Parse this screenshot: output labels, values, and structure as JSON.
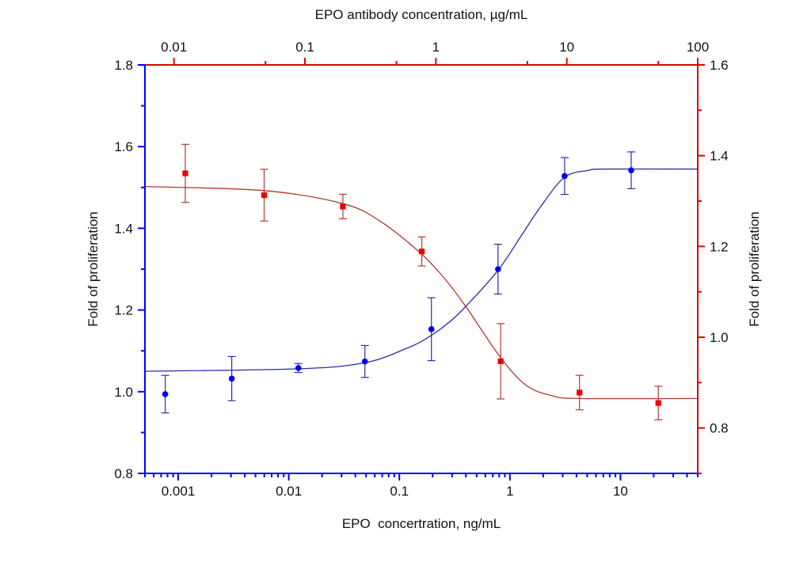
{
  "chart_data": {
    "type": "scatter",
    "grid": false,
    "legend": "none",
    "axes": {
      "bottom": {
        "label": "EPO  concertration, ng/mL",
        "scale": "log",
        "range": [
          0.0005,
          50
        ],
        "ticks": [
          "0.001",
          "0.01",
          "0.1",
          "1",
          "10"
        ],
        "color": "#0000ff"
      },
      "top": {
        "label": "EPO antibody concentration, µg/mL",
        "scale": "log",
        "range": [
          0.006,
          100
        ],
        "ticks": [
          "0.01",
          "0.1",
          "1",
          "10",
          "100"
        ],
        "color": "#e00000"
      },
      "left": {
        "label": "Fold of proliferation",
        "scale": "linear",
        "range": [
          0.8,
          1.8
        ],
        "ticks": [
          "0.8",
          "1.0",
          "1.2",
          "1.4",
          "1.6",
          "1.8"
        ],
        "color": "#0000ff"
      },
      "right": {
        "label": "Fold of proliferation",
        "scale": "linear",
        "range": [
          0.7,
          1.6
        ],
        "ticks": [
          "0.8",
          "1.0",
          "1.2",
          "1.4",
          "1.6"
        ],
        "color": "#e00000"
      }
    },
    "series": [
      {
        "x_axis": "bottom",
        "y_axis": "left",
        "marker": "circle",
        "color": "#0000ee",
        "line_color": "#2b2ba8",
        "x": [
          0.000763,
          0.00305,
          0.0122,
          0.0488,
          0.195,
          0.781,
          3.125,
          12.5
        ],
        "y": [
          0.994,
          1.032,
          1.058,
          1.074,
          1.153,
          1.3,
          1.528,
          1.542
        ],
        "error": [
          0.046,
          0.054,
          0.011,
          0.039,
          0.077,
          0.061,
          0.045,
          0.045
        ],
        "fit_curve": {
          "x": [
            0.0005,
            0.0122,
            0.049,
            0.116,
            0.18,
            0.265,
            0.39,
            0.78,
            1.24,
            1.92,
            3.13,
            5.17,
            7.2,
            50
          ],
          "y": [
            1.05,
            1.056,
            1.071,
            1.106,
            1.132,
            1.164,
            1.206,
            1.297,
            1.378,
            1.455,
            1.525,
            1.542,
            1.545,
            1.545
          ]
        }
      },
      {
        "x_axis": "top",
        "y_axis": "right",
        "marker": "square",
        "color": "#ee0000",
        "line_color": "#b03a30",
        "x": [
          0.0122,
          0.0488,
          0.195,
          0.781,
          3.125,
          12.5,
          50
        ],
        "y": [
          1.361,
          1.313,
          1.288,
          1.189,
          0.947,
          0.878,
          0.855
        ],
        "error": [
          0.064,
          0.057,
          0.027,
          0.032,
          0.083,
          0.038,
          0.037
        ],
        "fit_curve": {
          "x": [
            0.006,
            0.049,
            0.197,
            0.378,
            0.726,
            1.1,
            1.68,
            3.07,
            4.89,
            7.78,
            12.4,
            100
          ],
          "y": [
            1.332,
            1.323,
            1.294,
            1.255,
            1.191,
            1.138,
            1.069,
            0.958,
            0.894,
            0.871,
            0.865,
            0.865
          ]
        }
      }
    ]
  }
}
